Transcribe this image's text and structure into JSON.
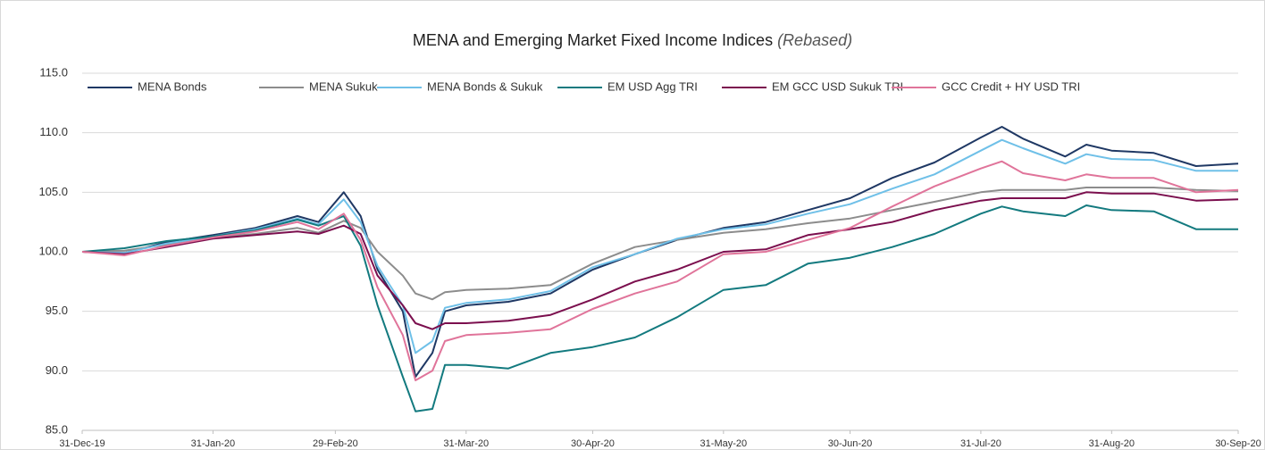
{
  "chart_data": {
    "type": "line",
    "title": "MENA and Emerging Market Fixed Income Indices",
    "subtitle": "(Rebased)",
    "x": [
      "2019-12-31",
      "2020-01-10",
      "2020-01-20",
      "2020-01-31",
      "2020-02-10",
      "2020-02-20",
      "2020-02-25",
      "2020-03-02",
      "2020-03-06",
      "2020-03-10",
      "2020-03-16",
      "2020-03-19",
      "2020-03-23",
      "2020-03-26",
      "2020-03-31",
      "2020-04-10",
      "2020-04-20",
      "2020-04-30",
      "2020-05-10",
      "2020-05-20",
      "2020-05-31",
      "2020-06-10",
      "2020-06-20",
      "2020-06-30",
      "2020-07-10",
      "2020-07-20",
      "2020-07-31",
      "2020-08-05",
      "2020-08-10",
      "2020-08-20",
      "2020-08-25",
      "2020-08-31",
      "2020-09-10",
      "2020-09-20",
      "2020-09-30"
    ],
    "series": [
      {
        "name": "MENA Bonds",
        "color": "#1f3864",
        "values": [
          100,
          99.9,
          100.8,
          101.4,
          102.0,
          103.0,
          102.5,
          105.0,
          103.0,
          98.5,
          95.0,
          89.5,
          91.5,
          95.0,
          95.5,
          95.8,
          96.5,
          98.5,
          99.8,
          101.0,
          102.0,
          102.5,
          103.5,
          104.5,
          106.2,
          107.5,
          109.6,
          110.5,
          109.5,
          108.0,
          109.0,
          108.5,
          108.3,
          107.2,
          107.4
        ]
      },
      {
        "name": "MENA Sukuk",
        "color": "#8c8c8c",
        "values": [
          100,
          100.1,
          100.6,
          101.2,
          101.5,
          102.0,
          101.6,
          102.6,
          102.0,
          100.0,
          98.0,
          96.5,
          96.0,
          96.6,
          96.8,
          96.9,
          97.2,
          99.0,
          100.4,
          101.0,
          101.6,
          101.9,
          102.4,
          102.8,
          103.5,
          104.2,
          105.0,
          105.2,
          105.2,
          105.2,
          105.4,
          105.4,
          105.4,
          105.2,
          105.1
        ]
      },
      {
        "name": "MENA Bonds & Sukuk",
        "color": "#6fc0e8",
        "values": [
          100,
          99.9,
          100.7,
          101.3,
          101.9,
          102.8,
          102.3,
          104.4,
          102.5,
          98.8,
          95.5,
          91.5,
          92.5,
          95.3,
          95.7,
          96.0,
          96.7,
          98.7,
          99.8,
          101.1,
          101.9,
          102.3,
          103.2,
          104.0,
          105.3,
          106.5,
          108.5,
          109.4,
          108.7,
          107.4,
          108.2,
          107.8,
          107.7,
          106.8,
          106.8
        ]
      },
      {
        "name": "EM USD Agg TRI",
        "color": "#137a7f",
        "values": [
          100,
          100.3,
          100.9,
          101.3,
          101.8,
          102.7,
          102.2,
          103.0,
          100.5,
          95.5,
          89.5,
          86.6,
          86.8,
          90.5,
          90.5,
          90.2,
          91.5,
          92.0,
          92.8,
          94.5,
          96.8,
          97.2,
          99.0,
          99.5,
          100.4,
          101.5,
          103.2,
          103.8,
          103.4,
          103.0,
          103.9,
          103.5,
          103.4,
          101.9,
          101.9
        ]
      },
      {
        "name": "EM GCC USD Sukuk TRI",
        "color": "#7b0f4e",
        "values": [
          100,
          99.8,
          100.4,
          101.1,
          101.4,
          101.7,
          101.5,
          102.2,
          101.5,
          98.0,
          95.5,
          94.0,
          93.5,
          94.0,
          94.0,
          94.2,
          94.7,
          96.0,
          97.5,
          98.5,
          100.0,
          100.2,
          101.4,
          101.9,
          102.5,
          103.5,
          104.3,
          104.5,
          104.5,
          104.5,
          105.0,
          104.9,
          104.9,
          104.3,
          104.4
        ]
      },
      {
        "name": "GCC Credit + HY USD TRI",
        "color": "#e0749a",
        "values": [
          100,
          99.7,
          100.5,
          101.2,
          101.7,
          102.5,
          101.9,
          103.2,
          101.0,
          97.0,
          93.0,
          89.2,
          90.0,
          92.5,
          93.0,
          93.2,
          93.5,
          95.2,
          96.5,
          97.5,
          99.8,
          100.0,
          101.0,
          102.0,
          103.8,
          105.5,
          107.0,
          107.6,
          106.6,
          106.0,
          106.5,
          106.2,
          106.2,
          105.0,
          105.2
        ]
      }
    ],
    "ylim": [
      85,
      115
    ],
    "yticks": [
      {
        "value": 85,
        "label": "85.0"
      },
      {
        "value": 90,
        "label": "90.0"
      },
      {
        "value": 95,
        "label": "95.0"
      },
      {
        "value": 100,
        "label": "100.0"
      },
      {
        "value": 105,
        "label": "105.0"
      },
      {
        "value": 110,
        "label": "110.0"
      },
      {
        "value": 115,
        "label": "115.0"
      }
    ],
    "xticks": [
      {
        "value": "2019-12-31",
        "label": "31-Dec-19"
      },
      {
        "value": "2020-01-31",
        "label": "31-Jan-20"
      },
      {
        "value": "2020-02-29",
        "label": "29-Feb-20"
      },
      {
        "value": "2020-03-31",
        "label": "31-Mar-20"
      },
      {
        "value": "2020-04-30",
        "label": "30-Apr-20"
      },
      {
        "value": "2020-05-31",
        "label": "31-May-20"
      },
      {
        "value": "2020-06-30",
        "label": "30-Jun-20"
      },
      {
        "value": "2020-07-31",
        "label": "31-Jul-20"
      },
      {
        "value": "2020-08-31",
        "label": "31-Aug-20"
      },
      {
        "value": "2020-09-30",
        "label": "30-Sep-20"
      }
    ],
    "grid": true,
    "legend": "top"
  }
}
